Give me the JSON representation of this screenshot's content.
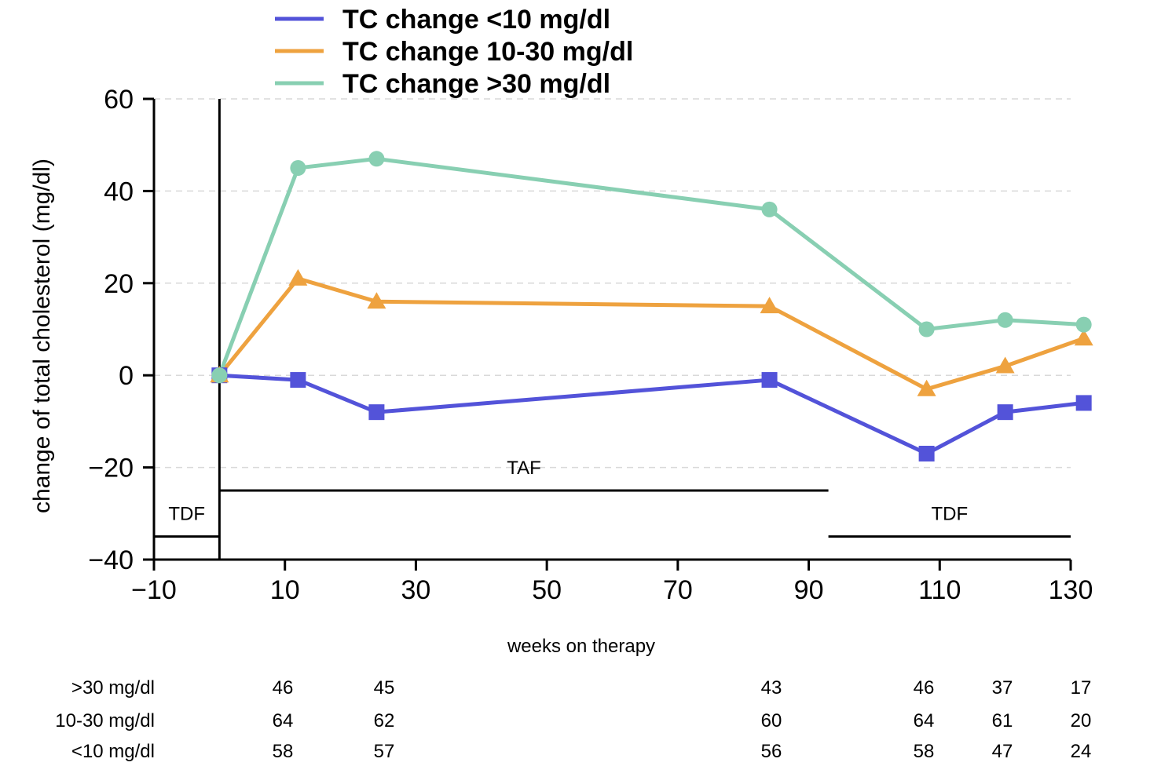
{
  "chart_data": {
    "type": "line",
    "xlabel": "weeks on therapy",
    "ylabel": "change of total cholesterol (mg/dl)",
    "xlim": [
      -10,
      130
    ],
    "ylim": [
      -40,
      60
    ],
    "x_ticks": [
      -10,
      10,
      30,
      50,
      70,
      90,
      110,
      130
    ],
    "y_ticks": [
      -40,
      -20,
      0,
      20,
      40,
      60
    ],
    "x_tick_labels": [
      "−10",
      "10",
      "30",
      "50",
      "70",
      "90",
      "110",
      "130"
    ],
    "y_tick_labels": [
      "−40",
      "−20",
      "0",
      "20",
      "40",
      "60"
    ],
    "grid": "horizontal dashed",
    "legend_position": "top",
    "series": [
      {
        "name": "TC change <10 mg/dl",
        "color": "#5353d9",
        "marker": "square",
        "x": [
          0,
          12,
          24,
          84,
          108,
          120,
          132
        ],
        "y": [
          0,
          -1,
          -8,
          -1,
          -17,
          -8,
          -6
        ]
      },
      {
        "name": "TC change 10-30 mg/dl",
        "color": "#eea23f",
        "marker": "triangle",
        "x": [
          0,
          12,
          24,
          84,
          108,
          120,
          132
        ],
        "y": [
          0,
          21,
          16,
          15,
          -3,
          2,
          8
        ]
      },
      {
        "name": "TC change >30 mg/dl",
        "color": "#88cfb2",
        "marker": "circle",
        "x": [
          0,
          12,
          24,
          84,
          108,
          120,
          132
        ],
        "y": [
          0,
          45,
          47,
          36,
          10,
          12,
          11
        ]
      }
    ],
    "periods": [
      {
        "label": "TDF",
        "x_start": -10,
        "x_end": 0,
        "y": -35
      },
      {
        "label": "TAF",
        "x_start": 0,
        "x_end": 93,
        "y": -25
      },
      {
        "label": "TDF",
        "x_start": 93,
        "x_end": 130,
        "y": -35
      }
    ],
    "baseline_marker_x": 0,
    "count_table": {
      "rows": [
        {
          "label": ">30 mg/dl",
          "counts": [
            "46",
            "45",
            "43",
            "46",
            "37",
            "17"
          ]
        },
        {
          "label": "10-30 mg/dl",
          "counts": [
            "64",
            "62",
            "60",
            "64",
            "61",
            "20"
          ]
        },
        {
          "label": "<10 mg/dl",
          "counts": [
            "58",
            "57",
            "56",
            "58",
            "47",
            "24"
          ]
        }
      ],
      "at_weeks": [
        12,
        24,
        84,
        108,
        120,
        132
      ]
    }
  }
}
